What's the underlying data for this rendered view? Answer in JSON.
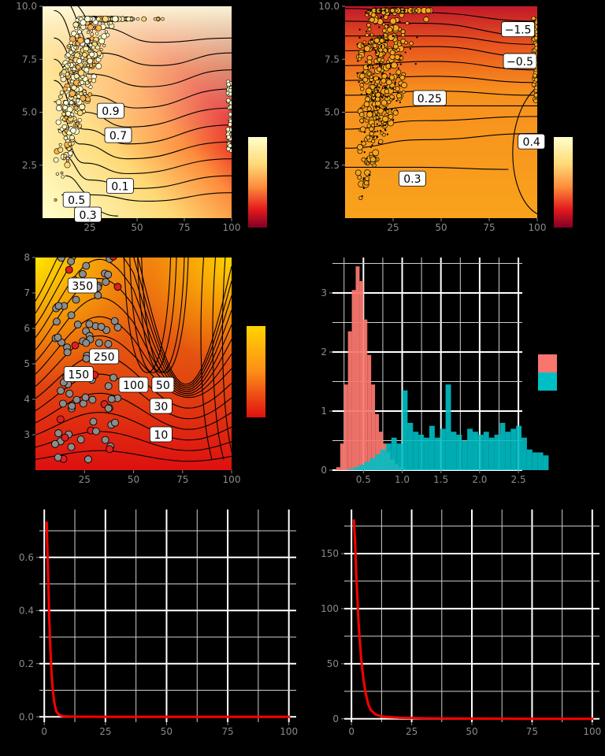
{
  "chart_data": [
    {
      "type": "heatmap",
      "panel": "top-left contour with scatter",
      "title": "",
      "xlabel": "",
      "ylabel": "",
      "xlim": [
        0,
        100
      ],
      "ylim": [
        0,
        10
      ],
      "x_ticks": [
        25,
        50,
        75,
        100
      ],
      "y_ticks": [
        2.5,
        5.0,
        7.5,
        10.0
      ],
      "colormap": "YlOrRd (light = high)",
      "contour_labels": [
        {
          "text": "0.9",
          "x": 36,
          "y": 5.05
        },
        {
          "text": "0.7",
          "x": 40,
          "y": 3.9
        },
        {
          "text": "0.1",
          "x": 41,
          "y": 1.5
        },
        {
          "text": "0.5",
          "x": 18,
          "y": 0.85
        },
        {
          "text": "0.3",
          "x": 24,
          "y": 0.15
        }
      ],
      "colorbar": true,
      "scatter": true,
      "legend": "none"
    },
    {
      "type": "heatmap",
      "panel": "top-right contour with scatter",
      "title": "",
      "xlabel": "",
      "ylabel": "",
      "xlim": [
        0,
        100
      ],
      "ylim": [
        0,
        10
      ],
      "x_ticks": [
        25,
        50,
        75,
        100
      ],
      "y_ticks": [
        2.5,
        5.0,
        7.5,
        10.0
      ],
      "colormap": "YlOrRd",
      "contour_labels": [
        {
          "text": "−1.5",
          "x": 90,
          "y": 8.9
        },
        {
          "text": "−0.5",
          "x": 91,
          "y": 7.4
        },
        {
          "text": "0.25",
          "x": 44,
          "y": 5.65
        },
        {
          "text": "0.3",
          "x": 35,
          "y": 1.85
        },
        {
          "text": "0.4",
          "x": 97,
          "y": 3.6
        }
      ],
      "colorbar": true,
      "scatter": true,
      "legend": "none"
    },
    {
      "type": "heatmap",
      "panel": "middle-left contour with scatter",
      "title": "",
      "xlabel": "",
      "ylabel": "",
      "xlim": [
        0,
        100
      ],
      "ylim": [
        2,
        8
      ],
      "x_ticks": [
        25,
        50,
        75,
        100
      ],
      "y_ticks": [
        3,
        4,
        5,
        6,
        7,
        8
      ],
      "colormap": "YlOrRd",
      "contour_labels": [
        {
          "text": "350",
          "x": 24,
          "y": 7.2
        },
        {
          "text": "250",
          "x": 35,
          "y": 5.2
        },
        {
          "text": "150",
          "x": 22,
          "y": 4.7
        },
        {
          "text": "100",
          "x": 50,
          "y": 4.4
        },
        {
          "text": "50",
          "x": 65,
          "y": 4.4
        },
        {
          "text": "30",
          "x": 64,
          "y": 3.8
        },
        {
          "text": "10",
          "x": 64,
          "y": 3.0
        }
      ],
      "colorbar": true,
      "scatter": true,
      "legend": "none"
    },
    {
      "type": "bar",
      "panel": "middle-right overlapping histograms",
      "title": "",
      "xlabel": "",
      "ylabel": "",
      "xlim": [
        0.1,
        2.55
      ],
      "ylim": [
        0,
        3.6
      ],
      "x_ticks": [
        0.5,
        1.0,
        1.5,
        2.0,
        2.5
      ],
      "y_ticks": [
        0,
        1,
        2,
        3
      ],
      "grid": true,
      "legend": "right (two color swatches, no text)",
      "series": [
        {
          "color": "#F8766D",
          "bin_width": 0.05,
          "x_start": 0.15,
          "values": [
            0.05,
            0.45,
            1.45,
            2.35,
            3.05,
            3.45,
            3.2,
            2.55,
            1.95,
            1.45,
            0.95,
            0.65,
            0.45,
            0.3,
            0.18,
            0.1,
            0.05,
            0.03,
            0.02,
            0.01
          ]
        },
        {
          "color": "#00BFC4",
          "bin_width": 0.07,
          "x_start": 0.3,
          "values": [
            0.02,
            0.05,
            0.09,
            0.14,
            0.2,
            0.27,
            0.35,
            0.45,
            0.55,
            0.45,
            1.35,
            0.8,
            0.65,
            0.6,
            0.55,
            0.75,
            0.55,
            0.7,
            1.45,
            0.65,
            0.6,
            0.5,
            0.7,
            0.65,
            0.6,
            0.65,
            0.55,
            0.6,
            0.8,
            0.65,
            0.7,
            0.75,
            0.55,
            0.35,
            0.3,
            0.3,
            0.25
          ]
        }
      ]
    },
    {
      "type": "line",
      "panel": "bottom-left decay curve",
      "title": "",
      "xlabel": "",
      "ylabel": "",
      "xlim": [
        -2,
        103
      ],
      "ylim": [
        -0.02,
        0.78
      ],
      "x_ticks": [
        0,
        25,
        50,
        75,
        100
      ],
      "y_ticks": [
        0.0,
        0.2,
        0.4,
        0.6
      ],
      "grid": true,
      "series": [
        {
          "color": "#FF0000",
          "x": [
            1,
            1.5,
            2,
            2.5,
            3,
            3.5,
            4,
            4.5,
            5,
            6,
            7,
            8,
            10,
            15,
            25,
            50,
            75,
            100
          ],
          "y": [
            0.73,
            0.55,
            0.38,
            0.25,
            0.16,
            0.1,
            0.06,
            0.035,
            0.02,
            0.008,
            0.004,
            0.002,
            0.001,
            0.0005,
            0.0002,
            0.0001,
            0.0,
            0.0
          ]
        }
      ]
    },
    {
      "type": "line",
      "panel": "bottom-right decay curve",
      "title": "",
      "xlabel": "",
      "ylabel": "",
      "xlim": [
        -3,
        103
      ],
      "ylim": [
        -3,
        190
      ],
      "x_ticks": [
        0,
        25,
        50,
        75,
        100
      ],
      "y_ticks": [
        0,
        50,
        100,
        150
      ],
      "grid": true,
      "series": [
        {
          "color": "#FF0000",
          "x": [
            1,
            1.5,
            2,
            3,
            4,
            5,
            6,
            7,
            8,
            10,
            12,
            15,
            20,
            30,
            50,
            75,
            100
          ],
          "y": [
            180,
            160,
            130,
            85,
            55,
            35,
            22,
            13,
            8,
            4,
            2.5,
            1.6,
            1.0,
            0.5,
            0.2,
            0.1,
            0.0
          ]
        }
      ]
    }
  ]
}
